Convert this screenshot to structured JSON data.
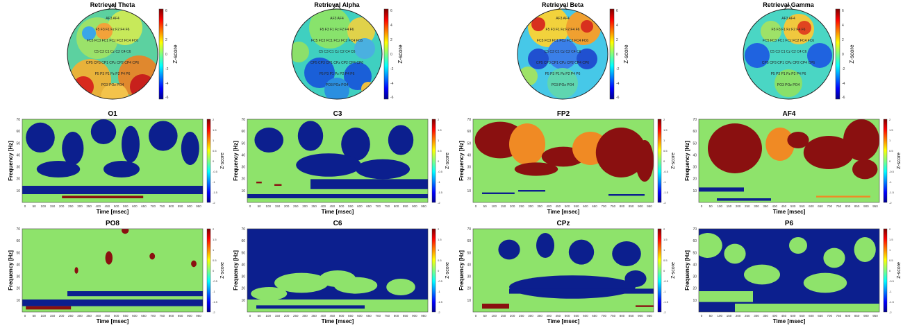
{
  "colors": {
    "green": "#8ee36b",
    "blue": "#0c1f8e",
    "red": "#8a1010",
    "orange": "#f08a24"
  },
  "topomaps": [
    {
      "title": "Retrieval Theta",
      "cbar_label": "Z-score",
      "ticks": [
        "6",
        "4",
        "2",
        "0",
        "-2",
        "-4",
        "-6"
      ],
      "top_label": "Fp1  Fp2"
    },
    {
      "title": "Retrieval Alpha",
      "cbar_label": "Z-score",
      "ticks": [
        "6",
        "4",
        "2",
        "0",
        "-2",
        "-4",
        "-6"
      ],
      "top_label": "Fp1  Fp2"
    },
    {
      "title": "Retrieval Beta",
      "cbar_label": "Z-score",
      "ticks": [
        "6",
        "4",
        "2",
        "0",
        "-2",
        "-4",
        "-6"
      ],
      "top_label": "Fp1  Fp2"
    },
    {
      "title": "Retrieval Gamma",
      "cbar_label": "Z-score",
      "ticks": [
        "6",
        "4",
        "2",
        "0",
        "-2",
        "-4",
        "-6"
      ],
      "top_label": "Fp1  Fp2"
    }
  ],
  "panels": [
    {
      "title": "O1"
    },
    {
      "title": "C3"
    },
    {
      "title": "FP2"
    },
    {
      "title": "AF4"
    },
    {
      "title": "PO8"
    },
    {
      "title": "C6"
    },
    {
      "title": "CPz"
    },
    {
      "title": "P6"
    }
  ],
  "axes": {
    "xlabel": "Time [msec]",
    "ylabel": "Frequency [Hz]",
    "cbar_label": "Z-score",
    "yticks": [
      "70",
      "60",
      "50",
      "40",
      "30",
      "20",
      "10"
    ],
    "xticks": [
      "0",
      "50",
      "100",
      "150",
      "200",
      "250",
      "300",
      "350",
      "400",
      "450",
      "500",
      "550",
      "600",
      "650",
      "700",
      "750",
      "800",
      "850",
      "900",
      "950"
    ],
    "cticks": [
      "2",
      "1.5",
      "1",
      "0.5",
      "0",
      "-0.5",
      "-1",
      "-1.5",
      "-2"
    ]
  }
}
